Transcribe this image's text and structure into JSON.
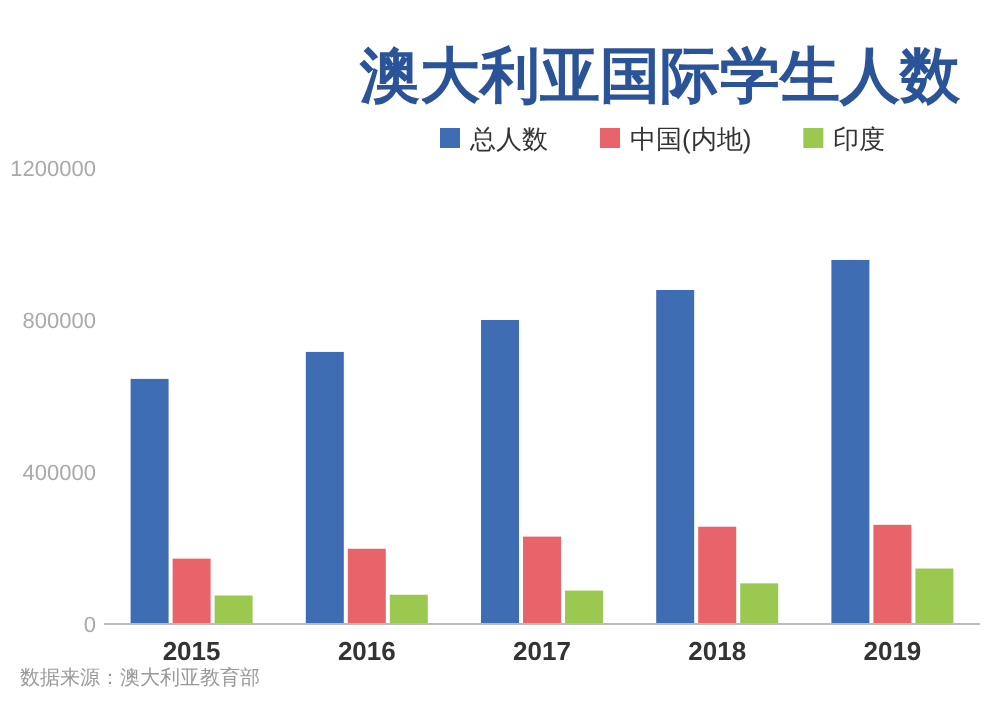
{
  "chart_data": {
    "type": "bar",
    "title": "澳大利亚国际学生人数",
    "categories": [
      "2015",
      "2016",
      "2017",
      "2018",
      "2019"
    ],
    "series": [
      {
        "name": "总人数",
        "color": "#3f6db3",
        "values": [
          645000,
          716000,
          800000,
          879000,
          958000
        ]
      },
      {
        "name": "中国(内地)",
        "color": "#e8646a",
        "values": [
          172000,
          198000,
          230000,
          256000,
          261000
        ]
      },
      {
        "name": "印度",
        "color": "#9bc94f",
        "values": [
          75000,
          77000,
          88000,
          107000,
          146000
        ]
      }
    ],
    "ylim": [
      0,
      1200000
    ],
    "yticks": [
      0,
      400000,
      800000,
      1200000
    ],
    "grid": false,
    "legend": "top right",
    "annotations": [
      "数据来源：澳大利亚教育部"
    ]
  }
}
